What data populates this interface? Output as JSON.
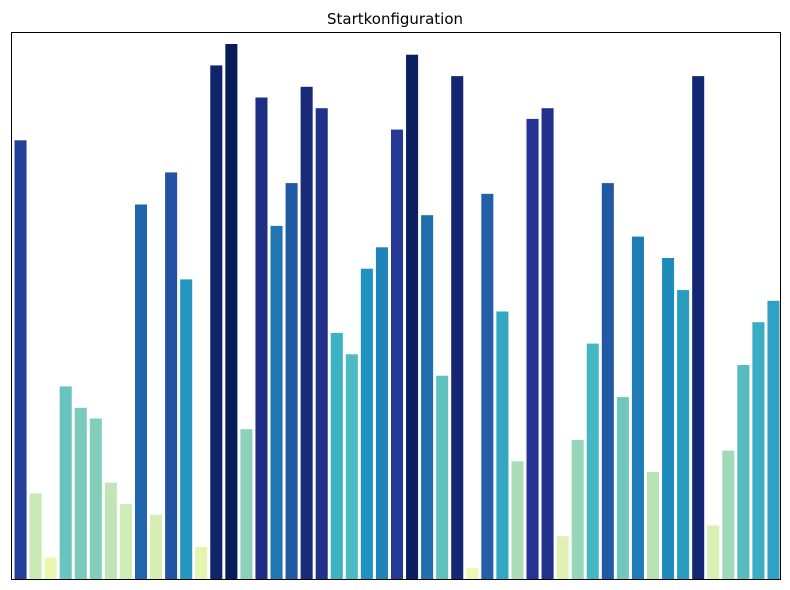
{
  "chart_data": {
    "type": "bar",
    "title": "Startkonfiguration",
    "xlabel": "",
    "ylabel": "",
    "ylim": [
      0,
      100
    ],
    "grid": false,
    "legend": "none",
    "colormap": "YlGnBu",
    "values": [
      82,
      16,
      4,
      36,
      32,
      30,
      18,
      14,
      70,
      12,
      76,
      56,
      6,
      96,
      100,
      28,
      90,
      66,
      74,
      92,
      88,
      46,
      42,
      58,
      62,
      84,
      98,
      68,
      38,
      94,
      2,
      72,
      50,
      22,
      86,
      88,
      8,
      26,
      44,
      74,
      34,
      64,
      20,
      60,
      54,
      94,
      10,
      24,
      40,
      48,
      52
    ]
  }
}
